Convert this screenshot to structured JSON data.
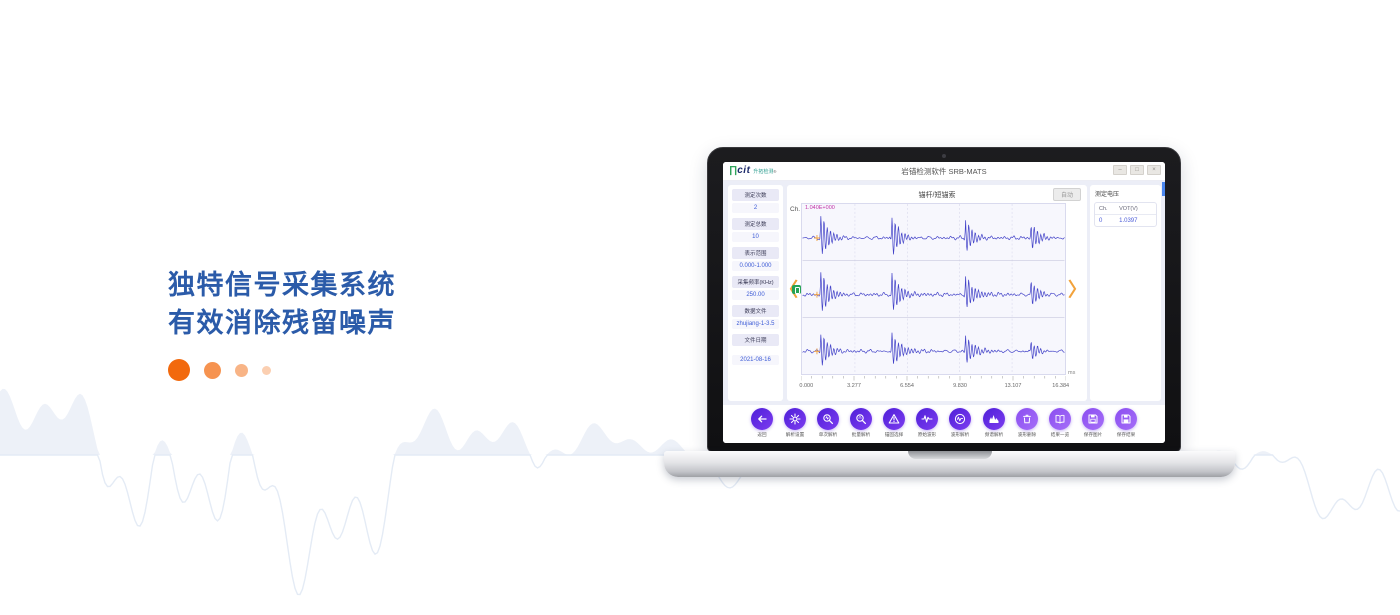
{
  "hero": {
    "title_line1": "独特信号采集系统",
    "title_line2": "有效消除残留噪声",
    "accent_color": "#2b5ba9",
    "dot_color": "#f2690d"
  },
  "laptop": {
    "app": {
      "titlebar": {
        "logo_n": "∏",
        "logo_cit": "cit",
        "logo_cn": "升拓检测",
        "logo_reg": "®",
        "title": "岩锚检测软件 SRB-MATS",
        "minimize": "–",
        "maximize": "□",
        "close": "×"
      },
      "sidebar": {
        "items": [
          {
            "label": "测定次数",
            "value": "2"
          },
          {
            "label": "测定总数",
            "value": "10"
          },
          {
            "label": "表示范围",
            "value": "0.000-1.000"
          },
          {
            "label": "采集频率(KHz)",
            "value": "250.00"
          },
          {
            "label": "数据文件",
            "value": "zhujiang-1-3.5"
          },
          {
            "label": "文件日期",
            "value": "2021-08-16"
          }
        ]
      },
      "chart": {
        "title": "锚杆/短锚索",
        "auto_button": "自动",
        "channel_label": "Ch.",
        "peak_value": "1.040E+000",
        "x_unit": "ms"
      },
      "right_panel": {
        "header": "测定电压",
        "col1": "Ch.",
        "col2": "VOT(V)",
        "row_ch": "0",
        "row_vot": "1.0397"
      },
      "toolbar": {
        "buttons": [
          {
            "label": "返回"
          },
          {
            "label": "解析设置"
          },
          {
            "label": "单次解析"
          },
          {
            "label": "批量解析"
          },
          {
            "label": "锚固选择"
          },
          {
            "label": "原始波形"
          },
          {
            "label": "波形解析"
          },
          {
            "label": "频谱解析"
          },
          {
            "label": "波形删除"
          },
          {
            "label": "结果一览"
          },
          {
            "label": "保存图片"
          },
          {
            "label": "保存结果"
          }
        ]
      }
    }
  },
  "chart_data": {
    "type": "line",
    "title": "锚杆/短锚索",
    "channels": 3,
    "x_unit": "ms",
    "x_range": [
      0,
      16.384
    ],
    "x_tick_labels": [
      "0.000",
      "3.277",
      "6.554",
      "9.830",
      "13.107",
      "16.384"
    ],
    "peak_annotation": "1.040E+000",
    "spike_positions_ms": [
      1.15,
      5.6,
      10.2,
      14.3
    ],
    "relative_amplitudes": [
      1.0,
      0.95,
      0.78,
      0.58
    ],
    "waveform_color": "#4242c8",
    "grid": true,
    "legend": false
  }
}
